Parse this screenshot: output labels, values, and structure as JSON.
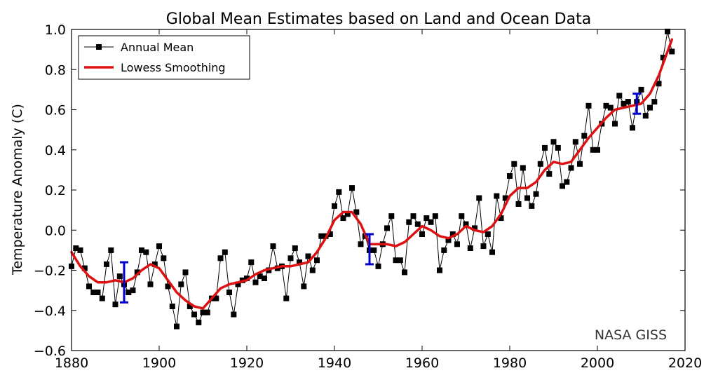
{
  "chart_data": {
    "type": "line",
    "title": "Global Mean Estimates based on Land and Ocean Data",
    "xlabel": "",
    "ylabel": "Temperature Anomaly (C)",
    "xlim": [
      1880,
      2020
    ],
    "ylim": [
      -0.6,
      1.0
    ],
    "xticks": [
      1880,
      1900,
      1920,
      1940,
      1960,
      1980,
      2000,
      2020
    ],
    "yticks": [
      -0.6,
      -0.4,
      -0.2,
      0.0,
      0.2,
      0.4,
      0.6,
      0.8,
      1.0
    ],
    "ytick_labels": [
      "−0.6",
      "−0.4",
      "−0.2",
      "0.0",
      "0.2",
      "0.4",
      "0.6",
      "0.8",
      "1.0"
    ],
    "xtick_labels": [
      "1880",
      "1900",
      "1920",
      "1940",
      "1960",
      "1980",
      "2000",
      "2020"
    ],
    "legend_position": "top-left",
    "annotation": "NASA GISS",
    "colors": {
      "annual": "#000000",
      "smooth": "#dd1111",
      "errorbar": "#0000cc"
    },
    "series": [
      {
        "name": "Annual Mean",
        "style": "line-square-markers",
        "x": [
          1880,
          1881,
          1882,
          1883,
          1884,
          1885,
          1886,
          1887,
          1888,
          1889,
          1890,
          1891,
          1892,
          1893,
          1894,
          1895,
          1896,
          1897,
          1898,
          1899,
          1900,
          1901,
          1902,
          1903,
          1904,
          1905,
          1906,
          1907,
          1908,
          1909,
          1910,
          1911,
          1912,
          1913,
          1914,
          1915,
          1916,
          1917,
          1918,
          1919,
          1920,
          1921,
          1922,
          1923,
          1924,
          1925,
          1926,
          1927,
          1928,
          1929,
          1930,
          1931,
          1932,
          1933,
          1934,
          1935,
          1936,
          1937,
          1938,
          1939,
          1940,
          1941,
          1942,
          1943,
          1944,
          1945,
          1946,
          1947,
          1948,
          1949,
          1950,
          1951,
          1952,
          1953,
          1954,
          1955,
          1956,
          1957,
          1958,
          1959,
          1960,
          1961,
          1962,
          1963,
          1964,
          1965,
          1966,
          1967,
          1968,
          1969,
          1970,
          1971,
          1972,
          1973,
          1974,
          1975,
          1976,
          1977,
          1978,
          1979,
          1980,
          1981,
          1982,
          1983,
          1984,
          1985,
          1986,
          1987,
          1988,
          1989,
          1990,
          1991,
          1992,
          1993,
          1994,
          1995,
          1996,
          1997,
          1998,
          1999,
          2000,
          2001,
          2002,
          2003,
          2004,
          2005,
          2006,
          2007,
          2008,
          2009,
          2010,
          2011,
          2012,
          2013,
          2014,
          2015,
          2016,
          2017
        ],
        "values": [
          -0.18,
          -0.09,
          -0.1,
          -0.19,
          -0.28,
          -0.31,
          -0.31,
          -0.34,
          -0.17,
          -0.1,
          -0.37,
          -0.23,
          -0.27,
          -0.31,
          -0.3,
          -0.21,
          -0.1,
          -0.11,
          -0.27,
          -0.17,
          -0.08,
          -0.14,
          -0.28,
          -0.38,
          -0.48,
          -0.27,
          -0.21,
          -0.38,
          -0.42,
          -0.46,
          -0.41,
          -0.41,
          -0.34,
          -0.34,
          -0.14,
          -0.11,
          -0.31,
          -0.42,
          -0.27,
          -0.25,
          -0.24,
          -0.16,
          -0.26,
          -0.23,
          -0.24,
          -0.2,
          -0.08,
          -0.19,
          -0.18,
          -0.34,
          -0.14,
          -0.09,
          -0.16,
          -0.28,
          -0.13,
          -0.2,
          -0.15,
          -0.03,
          -0.03,
          -0.02,
          0.12,
          0.19,
          0.06,
          0.08,
          0.21,
          0.09,
          -0.07,
          -0.03,
          -0.1,
          -0.1,
          -0.18,
          -0.07,
          0.01,
          0.07,
          -0.15,
          -0.15,
          -0.21,
          0.04,
          0.07,
          0.03,
          -0.02,
          0.06,
          0.04,
          0.07,
          -0.2,
          -0.1,
          -0.05,
          -0.02,
          -0.07,
          0.07,
          0.03,
          -0.09,
          0.01,
          0.16,
          -0.08,
          -0.02,
          -0.11,
          0.17,
          0.06,
          0.16,
          0.27,
          0.33,
          0.13,
          0.31,
          0.16,
          0.12,
          0.18,
          0.33,
          0.41,
          0.28,
          0.44,
          0.41,
          0.22,
          0.24,
          0.31,
          0.44,
          0.33,
          0.47,
          0.62,
          0.4,
          0.4,
          0.53,
          0.62,
          0.61,
          0.53,
          0.67,
          0.63,
          0.64,
          0.51,
          0.64,
          0.7,
          0.57,
          0.61,
          0.64,
          0.73,
          0.86,
          0.99,
          0.89
        ]
      },
      {
        "name": "Lowess Smoothing",
        "style": "thick-line",
        "x": [
          1880,
          1882,
          1884,
          1886,
          1888,
          1890,
          1892,
          1894,
          1896,
          1898,
          1900,
          1902,
          1904,
          1906,
          1908,
          1910,
          1912,
          1914,
          1916,
          1918,
          1920,
          1922,
          1924,
          1926,
          1928,
          1930,
          1932,
          1934,
          1936,
          1938,
          1940,
          1942,
          1944,
          1946,
          1948,
          1950,
          1952,
          1954,
          1956,
          1958,
          1960,
          1962,
          1964,
          1966,
          1968,
          1970,
          1972,
          1974,
          1976,
          1978,
          1980,
          1982,
          1984,
          1986,
          1988,
          1990,
          1992,
          1994,
          1996,
          1998,
          2000,
          2002,
          2004,
          2006,
          2008,
          2010,
          2012,
          2014,
          2016,
          2017
        ],
        "values": [
          -0.11,
          -0.18,
          -0.23,
          -0.26,
          -0.26,
          -0.25,
          -0.26,
          -0.24,
          -0.2,
          -0.17,
          -0.19,
          -0.25,
          -0.31,
          -0.35,
          -0.38,
          -0.39,
          -0.34,
          -0.29,
          -0.27,
          -0.26,
          -0.25,
          -0.22,
          -0.2,
          -0.19,
          -0.18,
          -0.18,
          -0.17,
          -0.16,
          -0.11,
          -0.04,
          0.05,
          0.09,
          0.09,
          0.03,
          -0.07,
          -0.07,
          -0.07,
          -0.08,
          -0.06,
          -0.02,
          0.02,
          0.0,
          -0.03,
          -0.04,
          -0.02,
          0.02,
          0.0,
          -0.01,
          0.02,
          0.08,
          0.17,
          0.21,
          0.21,
          0.24,
          0.3,
          0.34,
          0.33,
          0.34,
          0.4,
          0.46,
          0.51,
          0.56,
          0.6,
          0.61,
          0.62,
          0.63,
          0.68,
          0.77,
          0.89,
          0.95
        ]
      }
    ],
    "error_bars": [
      {
        "x": 1892,
        "low": -0.36,
        "high": -0.16
      },
      {
        "x": 1948,
        "low": -0.17,
        "high": -0.02
      },
      {
        "x": 2009,
        "low": 0.58,
        "high": 0.68
      }
    ]
  }
}
